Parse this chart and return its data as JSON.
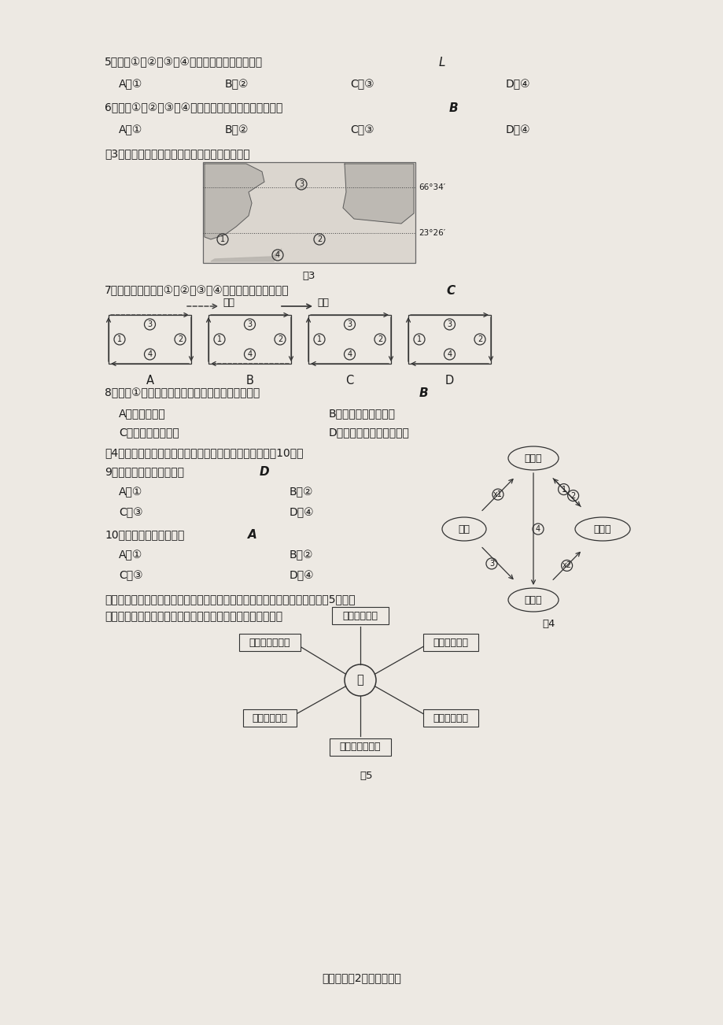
{
  "bg_color": "#ede9e3",
  "q5_text": "5．图中①、②、③、④四地，气压梯度最大的是",
  "q5_ans": "L",
  "q5_a": "A．①",
  "q5_b": "B．②",
  "q5_c": "C．③",
  "q5_d": "D．④",
  "q6_text": "6．图中①、②、③、④四地，最可能出现阴雨天气的是",
  "q6_ans": "B",
  "q6_a": "A．①",
  "q6_b": "B．②",
  "q6_c": "C．③",
  "q6_d": "D．④",
  "fig3_caption": "图3为北太平洋局部海域图。读图完成７～８题。",
  "fig3_label": "图3",
  "lat1": "66°34′",
  "lat2": "23°26′",
  "q7_text": "7．能正确表示图中①、②、③、④海域大洋环流模式的是",
  "q7_ans": "C",
  "cold_label": "寒流",
  "warm_label": "暖流",
  "q8_text": "8．影响①区域冬、夏季盛行风向变化的主要因素是",
  "q8_ans": "B",
  "q8_a": "A．地转偏向力",
  "q8_b": "B．海陆热力性质差异",
  "q8_c": "C．高低纬热量差异",
  "q8_d": "D．气压带、风带季节移动",
  "fig4_caption": "图4中箭头示意岩石圈物质循环的相关过程。读图完成９～10题。",
  "q9_text": "9．图中箭头标注错误的是",
  "q9_ans": "D",
  "q9_a": "A．①",
  "q9_b": "B．②",
  "q9_c": "C．③",
  "q9_d": "D．④",
  "q10_text": "10．可反映火山活动的是",
  "q10_ans": "A",
  "q10_a": "A．①",
  "q10_b": "B．②",
  "q10_c": "C．③",
  "q10_d": "D．④",
  "fig4_nodes": {
    "top": "岩浆岩",
    "left": "岩浆",
    "right": "沉积岩",
    "bot": "变质岩"
  },
  "fig4_label": "图4",
  "para1": "地理环境各要素之间是相互联系的，一个要素改变会对其他要素产生影响。图5示意某",
  "para2": "地地理要素变化对区域环境的影响。据此完成１１～１２题。",
  "fig5_center": "甲",
  "fig5_top": "水旱灾害增多",
  "fig5_tl": "土地荒漠化加剧",
  "fig5_tr": "温室效应增强",
  "fig5_bl": "土壤肖力下降",
  "fig5_br": "水土流失加剧",
  "fig5_bot": "径流量变率增大",
  "fig5_label": "图5",
  "page_footer": "地理试卷第2页（共８页）"
}
